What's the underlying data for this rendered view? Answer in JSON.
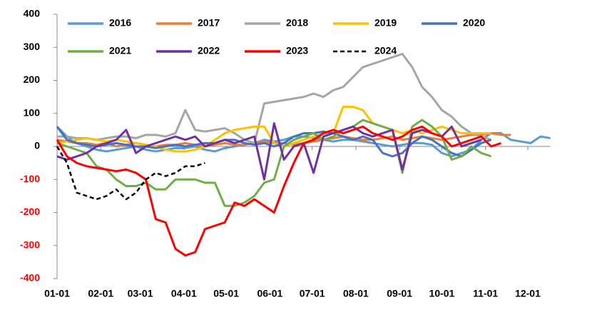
{
  "chart_data": {
    "type": "line",
    "x": [
      0,
      7,
      14,
      21,
      28,
      35,
      42,
      49,
      56,
      63,
      70,
      77,
      84,
      91,
      98,
      105,
      112,
      119,
      126,
      133,
      140,
      147,
      154,
      161,
      168,
      175,
      182,
      189,
      196,
      203,
      210,
      217,
      224,
      231,
      238,
      245,
      252,
      259,
      266,
      273,
      280,
      287,
      294,
      301,
      308,
      315,
      322,
      329,
      336,
      343,
      350
    ],
    "xlim": [
      0,
      350
    ],
    "xticks": [
      {
        "value": 0,
        "label": "01-01"
      },
      {
        "value": 31,
        "label": "02-01"
      },
      {
        "value": 59,
        "label": "03-01"
      },
      {
        "value": 90,
        "label": "04-01"
      },
      {
        "value": 120,
        "label": "05-01"
      },
      {
        "value": 151,
        "label": "06-01"
      },
      {
        "value": 181,
        "label": "07-01"
      },
      {
        "value": 212,
        "label": "08-01"
      },
      {
        "value": 243,
        "label": "09-01"
      },
      {
        "value": 273,
        "label": "10-01"
      },
      {
        "value": 304,
        "label": "11-01"
      },
      {
        "value": 334,
        "label": "12-01"
      }
    ],
    "ylim": [
      -400,
      400
    ],
    "yticks": [
      -400,
      -300,
      -200,
      -100,
      0,
      100,
      200,
      300,
      400
    ],
    "legend": "top",
    "series": [
      {
        "name": "2016",
        "color": "#5b9bd5",
        "values": [
          60,
          30,
          10,
          0,
          -10,
          -15,
          -10,
          -5,
          0,
          -10,
          -15,
          -10,
          -5,
          -5,
          0,
          -10,
          -15,
          -5,
          0,
          5,
          10,
          20,
          15,
          20,
          30,
          30,
          25,
          20,
          15,
          20,
          20,
          15,
          10,
          5,
          0,
          5,
          10,
          10,
          5,
          -20,
          -30,
          -20,
          -10,
          20,
          40,
          40,
          20,
          15,
          10,
          30,
          25
        ]
      },
      {
        "name": "2017",
        "color": "#ed7d31",
        "values": [
          20,
          15,
          10,
          10,
          5,
          10,
          0,
          5,
          10,
          5,
          0,
          5,
          5,
          10,
          5,
          0,
          5,
          10,
          5,
          5,
          10,
          15,
          10,
          10,
          5,
          10,
          15,
          20,
          25,
          30,
          25,
          20,
          20,
          25,
          30,
          20,
          25,
          30,
          25,
          20,
          25,
          30,
          35,
          35,
          40,
          35,
          35,
          null,
          null,
          null,
          null
        ]
      },
      {
        "name": "2018",
        "color": "#a5a5a5",
        "values": [
          30,
          30,
          25,
          25,
          20,
          25,
          30,
          30,
          25,
          35,
          35,
          30,
          40,
          110,
          50,
          45,
          50,
          55,
          40,
          20,
          10,
          130,
          135,
          140,
          145,
          150,
          160,
          150,
          170,
          180,
          210,
          240,
          250,
          260,
          270,
          280,
          240,
          180,
          150,
          110,
          90,
          60,
          40,
          30,
          20,
          null,
          null,
          null,
          null,
          null,
          null
        ]
      },
      {
        "name": "2019",
        "color": "#ffc000",
        "values": [
          10,
          15,
          20,
          25,
          20,
          15,
          20,
          15,
          10,
          5,
          0,
          -10,
          -15,
          -15,
          -10,
          0,
          20,
          40,
          50,
          55,
          60,
          60,
          10,
          0,
          10,
          20,
          30,
          40,
          40,
          120,
          120,
          110,
          70,
          60,
          50,
          40,
          50,
          40,
          50,
          60,
          50,
          40,
          40,
          40,
          40,
          null,
          null,
          null,
          null,
          null,
          null
        ]
      },
      {
        "name": "2020",
        "color": "#4472c4",
        "values": [
          60,
          20,
          10,
          5,
          0,
          5,
          10,
          5,
          0,
          0,
          -5,
          0,
          5,
          0,
          5,
          10,
          10,
          20,
          20,
          10,
          5,
          10,
          0,
          10,
          30,
          40,
          40,
          45,
          40,
          30,
          20,
          30,
          20,
          -20,
          -30,
          -20,
          10,
          30,
          20,
          0,
          -20,
          -30,
          -10,
          10,
          20,
          null,
          null,
          null,
          null,
          null,
          null
        ]
      },
      {
        "name": "2021",
        "color": "#70ad47",
        "values": [
          10,
          0,
          -10,
          -20,
          -60,
          -70,
          -100,
          -120,
          -120,
          -110,
          -130,
          -130,
          -100,
          -100,
          -100,
          -110,
          -110,
          -180,
          -180,
          -170,
          -150,
          -110,
          -100,
          0,
          20,
          30,
          40,
          20,
          30,
          50,
          60,
          80,
          70,
          60,
          50,
          -80,
          60,
          80,
          60,
          30,
          -40,
          -30,
          0,
          -20,
          -30,
          null,
          null,
          null,
          null,
          null,
          null
        ]
      },
      {
        "name": "2022",
        "color": "#7030a0",
        "values": [
          -30,
          -40,
          -30,
          -20,
          0,
          10,
          20,
          50,
          -20,
          0,
          10,
          20,
          30,
          20,
          30,
          0,
          10,
          20,
          10,
          20,
          30,
          -100,
          70,
          -40,
          0,
          10,
          -80,
          30,
          40,
          50,
          60,
          40,
          30,
          40,
          50,
          -70,
          40,
          50,
          40,
          30,
          60,
          0,
          10,
          20,
          null,
          null,
          null,
          null,
          null,
          null,
          null
        ]
      },
      {
        "name": "2023",
        "color": "#ff0000",
        "values": [
          20,
          -30,
          -50,
          -60,
          -65,
          -70,
          -75,
          -70,
          -80,
          -100,
          -220,
          -230,
          -310,
          -330,
          -320,
          -250,
          -240,
          -230,
          -170,
          -180,
          -160,
          -180,
          -200,
          -120,
          -50,
          10,
          20,
          40,
          50,
          40,
          50,
          60,
          40,
          30,
          20,
          30,
          50,
          60,
          40,
          30,
          0,
          10,
          20,
          30,
          0,
          10,
          null,
          null,
          null,
          null,
          null
        ]
      },
      {
        "name": "2024",
        "color": "#000000",
        "dashed": true,
        "values": [
          0,
          -50,
          -140,
          -150,
          -160,
          -150,
          -130,
          -160,
          -140,
          -100,
          -80,
          -90,
          -80,
          -60,
          -60,
          -50,
          null,
          null,
          null,
          null,
          null,
          null,
          null,
          null,
          null,
          null,
          null,
          null,
          null,
          null,
          null,
          null,
          null,
          null,
          null,
          null,
          null,
          null,
          null,
          null,
          null,
          null,
          null,
          null,
          null,
          null,
          null,
          null,
          null,
          null,
          null
        ]
      }
    ]
  }
}
